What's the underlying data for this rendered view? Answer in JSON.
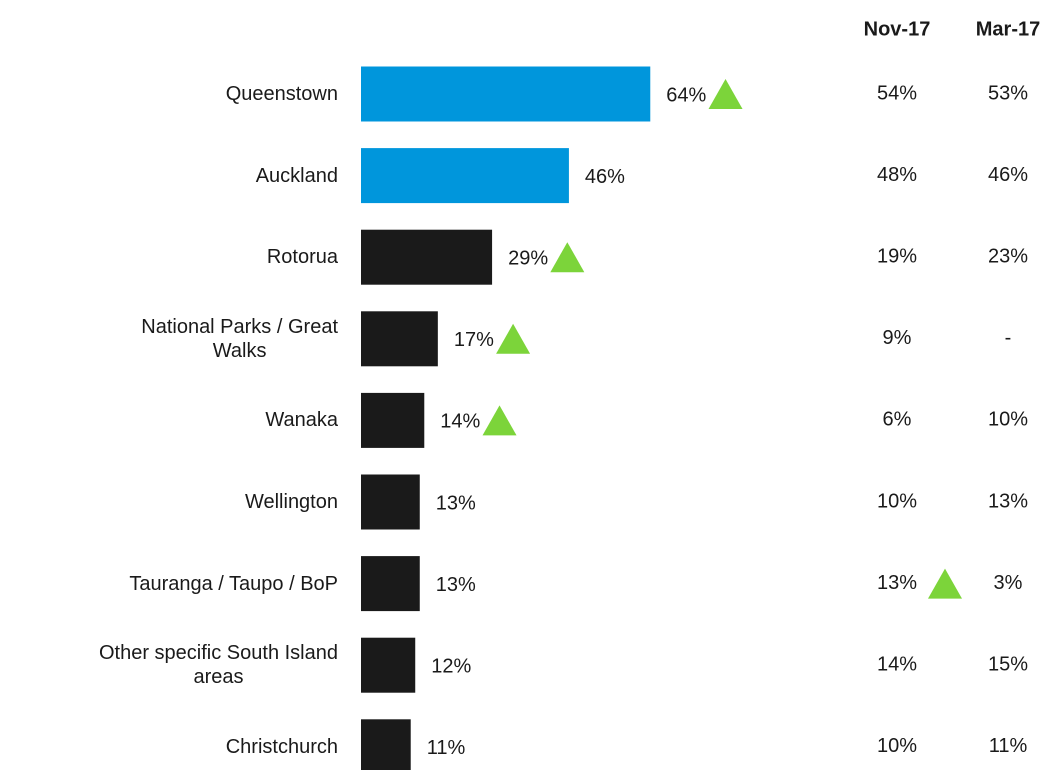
{
  "chart_data": {
    "type": "bar",
    "orientation": "horizontal",
    "categories": [
      "Queenstown",
      "Auckland",
      "Rotorua",
      "National Parks / Great\nWalks",
      "Wanaka",
      "Wellington",
      "Tauranga / Taupo / BoP",
      "Other specific South Island\nareas",
      "Christchurch"
    ],
    "values": [
      64,
      46,
      29,
      17,
      14,
      13,
      13,
      12,
      11
    ],
    "value_labels": [
      "64%",
      "46%",
      "29%",
      "17%",
      "14%",
      "13%",
      "13%",
      "12%",
      "11%"
    ],
    "colors": [
      "#0096dc",
      "#0096dc",
      "#1a1a1a",
      "#1a1a1a",
      "#1a1a1a",
      "#1a1a1a",
      "#1a1a1a",
      "#1a1a1a",
      "#1a1a1a"
    ],
    "significant_increase": [
      true,
      false,
      true,
      true,
      true,
      false,
      false,
      false,
      false
    ],
    "marker_color": "#7cd43a",
    "table": {
      "columns": [
        "Nov-17",
        "Mar-17"
      ],
      "rows": [
        [
          "54%",
          "53%"
        ],
        [
          "48%",
          "46%"
        ],
        [
          "19%",
          "23%"
        ],
        [
          "9%",
          "-"
        ],
        [
          "6%",
          "10%"
        ],
        [
          "10%",
          "13%"
        ],
        [
          "13%",
          "3%"
        ],
        [
          "14%",
          "15%"
        ],
        [
          "10%",
          "11%"
        ]
      ],
      "significant_increase": [
        [
          false,
          false
        ],
        [
          false,
          false
        ],
        [
          false,
          false
        ],
        [
          false,
          false
        ],
        [
          false,
          false
        ],
        [
          false,
          false
        ],
        [
          true,
          false
        ],
        [
          false,
          false
        ],
        [
          false,
          false
        ]
      ]
    }
  }
}
